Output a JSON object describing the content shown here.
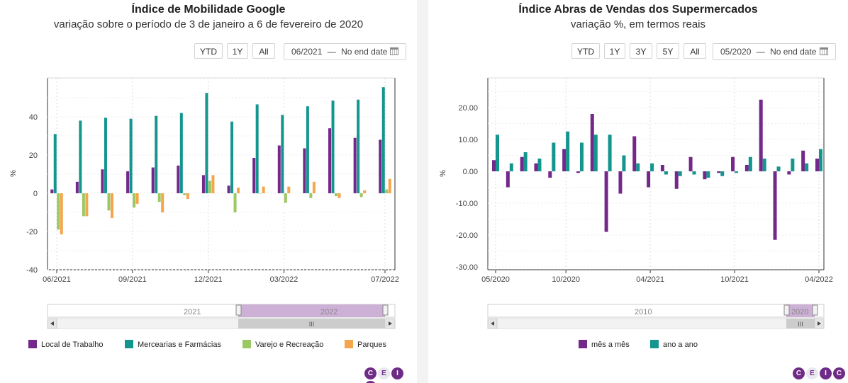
{
  "colors": {
    "purple": "#74288a",
    "teal": "#14968f",
    "green": "#9bc863",
    "orange": "#f4a64c",
    "navigator_fill": "#cdb0d6"
  },
  "left": {
    "title": "Índice de Mobilidade Google",
    "subtitle": "variação sobre o período de 3 de janeiro a 6 de fevereiro de 2020",
    "range_buttons": [
      "YTD",
      "1Y",
      "All"
    ],
    "date_from": "06/2021",
    "date_sep": "—",
    "date_to": "No end date",
    "navigator_labels": [
      "2021",
      "2022"
    ],
    "legend": [
      "Local de Trabalho",
      "Mercearias e Farmácias",
      "Varejo e Recreação",
      "Parques"
    ],
    "logo": [
      "C",
      "E",
      "I",
      "C"
    ]
  },
  "right": {
    "title": "Índice Abras de Vendas dos Supermercados",
    "subtitle": "variação %, em termos reais",
    "range_buttons": [
      "YTD",
      "1Y",
      "3Y",
      "5Y",
      "All"
    ],
    "date_from": "05/2020",
    "date_sep": "—",
    "date_to": "No end date",
    "navigator_labels": [
      "2010",
      "2020"
    ],
    "legend": [
      "mês a mês",
      "ano a ano"
    ],
    "logo": [
      "C",
      "E",
      "I",
      "C"
    ]
  },
  "chart_data": [
    {
      "type": "bar",
      "title": "Índice de Mobilidade Google",
      "subtitle": "variação sobre o período de 3 de janeiro a 6 de fevereiro de 2020",
      "ylabel": "%",
      "ylim": [
        -40,
        60
      ],
      "yticks": [
        -40,
        -20,
        0,
        20,
        40
      ],
      "xtick_labels": [
        "06/2021",
        "09/2021",
        "12/2021",
        "03/2022",
        "07/2022"
      ],
      "categories": [
        "06/2021",
        "07/2021",
        "08/2021",
        "09/2021",
        "10/2021",
        "11/2021",
        "12/2021",
        "01/2022",
        "02/2022",
        "03/2022",
        "04/2022",
        "05/2022",
        "06/2022",
        "07/2022"
      ],
      "grid": true,
      "legend_position": "bottom",
      "series": [
        {
          "name": "Local de Trabalho",
          "color": "#74288a",
          "values": [
            2,
            6,
            12.5,
            11.5,
            13.5,
            14.5,
            9.5,
            4,
            18.5,
            25,
            23.5,
            34,
            29,
            28
          ]
        },
        {
          "name": "Mercearias e Farmácias",
          "color": "#14968f",
          "values": [
            31,
            38,
            39.5,
            39,
            40.5,
            42,
            52.5,
            37.5,
            46.5,
            41,
            45.5,
            48.5,
            49,
            55.5
          ]
        },
        {
          "name": "Varejo e Recreação",
          "color": "#9bc863",
          "values": [
            -19,
            -12,
            -9,
            -7.5,
            -4.5,
            -1,
            6.5,
            -10,
            0,
            -5,
            -2.5,
            -1.5,
            -2,
            2
          ]
        },
        {
          "name": "Parques",
          "color": "#f4a64c",
          "values": [
            -21.5,
            -12,
            -13,
            -5.5,
            -10,
            -3,
            9.5,
            3,
            3.5,
            3.5,
            6,
            -2.5,
            1.5,
            7.5
          ]
        }
      ]
    },
    {
      "type": "bar",
      "title": "Índice Abras de Vendas dos Supermercados",
      "subtitle": "variação %, em termos reais",
      "ylabel": "%",
      "ylim": [
        -30,
        30
      ],
      "yticks": [
        "-30.00",
        "-20.00",
        "-10.00",
        "0.00",
        "10.00",
        "20.00"
      ],
      "xtick_labels": [
        "05/2020",
        "10/2020",
        "04/2021",
        "10/2021",
        "04/2022"
      ],
      "categories": [
        "05/2020",
        "06/2020",
        "07/2020",
        "08/2020",
        "09/2020",
        "10/2020",
        "11/2020",
        "12/2020",
        "01/2021",
        "02/2021",
        "03/2021",
        "04/2021",
        "05/2021",
        "06/2021",
        "07/2021",
        "08/2021",
        "09/2021",
        "10/2021",
        "11/2021",
        "12/2021",
        "01/2022",
        "02/2022",
        "03/2022",
        "04/2022"
      ],
      "grid": true,
      "legend_position": "bottom",
      "series": [
        {
          "name": "mês a mês",
          "color": "#74288a",
          "values": [
            3.5,
            -5,
            4.5,
            2.5,
            -2,
            7,
            -0.5,
            18,
            -19,
            -7,
            11,
            -5,
            2,
            -5.5,
            4.5,
            -2.5,
            -0.5,
            4.5,
            2,
            22.5,
            -21.5,
            -1,
            6.5,
            4
          ]
        },
        {
          "name": "ano a ano",
          "color": "#14968f",
          "values": [
            11.5,
            2.5,
            6,
            4,
            9,
            12.5,
            9,
            11.5,
            11.5,
            5,
            2.5,
            2.5,
            -1,
            -1.5,
            -1,
            -2,
            -1.5,
            -0.5,
            4.5,
            4,
            1.5,
            4,
            2.5,
            7
          ]
        }
      ]
    }
  ]
}
